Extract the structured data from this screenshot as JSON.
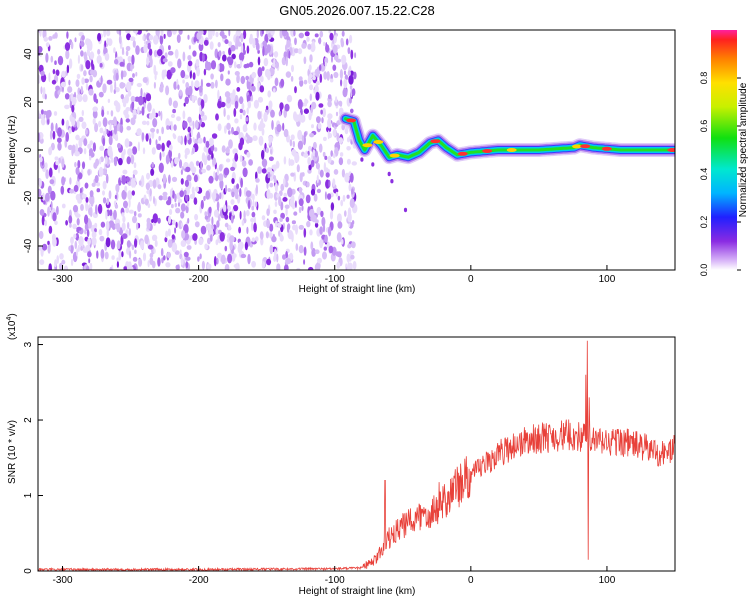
{
  "figure": {
    "title": "GN05.2026.007.15.22.C28"
  },
  "chart_data": [
    {
      "type": "heatmap",
      "xlabel": "Height of straight line (km)",
      "ylabel": "Frequency (Hz)",
      "xlim": [
        -318,
        150
      ],
      "ylim": [
        -50,
        50
      ],
      "xticks": [
        -300,
        -200,
        -100,
        0,
        100
      ],
      "xtick_labels": [
        "-300",
        "-200",
        "-100",
        "0",
        "100"
      ],
      "yticks": [
        -40,
        -20,
        0,
        20,
        40
      ],
      "ytick_labels": [
        "-40",
        "-20",
        "0",
        "20",
        "40"
      ],
      "noise_region_x": [
        -318,
        -85
      ],
      "signal_ridge": [
        {
          "x": -92,
          "y": 13
        },
        {
          "x": -86,
          "y": 12
        },
        {
          "x": -82,
          "y": 4
        },
        {
          "x": -78,
          "y": 0
        },
        {
          "x": -72,
          "y": 6
        },
        {
          "x": -66,
          "y": 2
        },
        {
          "x": -60,
          "y": -3
        },
        {
          "x": -54,
          "y": -2
        },
        {
          "x": -46,
          "y": -3
        },
        {
          "x": -38,
          "y": -1
        },
        {
          "x": -30,
          "y": 3
        },
        {
          "x": -24,
          "y": 4
        },
        {
          "x": -18,
          "y": 1
        },
        {
          "x": -10,
          "y": -2
        },
        {
          "x": 0,
          "y": -1
        },
        {
          "x": 20,
          "y": 0
        },
        {
          "x": 50,
          "y": 0
        },
        {
          "x": 76,
          "y": 1
        },
        {
          "x": 80,
          "y": 2
        },
        {
          "x": 90,
          "y": 1
        },
        {
          "x": 110,
          "y": 0
        },
        {
          "x": 150,
          "y": 0
        }
      ],
      "colorbar": {
        "label": "Normalized spectral amplitude",
        "range": [
          0,
          1
        ],
        "ticks": [
          0.0,
          0.2,
          0.4,
          0.6,
          0.8
        ],
        "tick_labels": [
          "0.0",
          "0.2",
          "0.4",
          "0.6",
          "0.8"
        ]
      }
    },
    {
      "type": "line",
      "xlabel": "Height of straight line (km)",
      "ylabel": "SNR (10 * v/v)",
      "y_multiplier": "(x10",
      "y_multiplier_exp": "4",
      "y_multiplier_close": ")",
      "xlim": [
        -318,
        150
      ],
      "ylim": [
        0,
        3.1
      ],
      "xticks": [
        -300,
        -200,
        -100,
        0,
        100
      ],
      "xtick_labels": [
        "-300",
        "-200",
        "-100",
        "0",
        "100"
      ],
      "yticks": [
        0,
        1,
        2,
        3
      ],
      "ytick_labels": [
        "0",
        "1",
        "2",
        "3"
      ],
      "color": "#e8413a",
      "series": [
        {
          "envelope": [
            {
              "x": -318,
              "y": 0.02
            },
            {
              "x": -200,
              "y": 0.02
            },
            {
              "x": -100,
              "y": 0.03
            },
            {
              "x": -80,
              "y": 0.04
            },
            {
              "x": -70,
              "y": 0.15
            },
            {
              "x": -60,
              "y": 0.45
            },
            {
              "x": -50,
              "y": 0.6
            },
            {
              "x": -40,
              "y": 0.7
            },
            {
              "x": -30,
              "y": 0.8
            },
            {
              "x": -20,
              "y": 0.95
            },
            {
              "x": -10,
              "y": 1.1
            },
            {
              "x": 0,
              "y": 1.25
            },
            {
              "x": 10,
              "y": 1.4
            },
            {
              "x": 20,
              "y": 1.55
            },
            {
              "x": 30,
              "y": 1.65
            },
            {
              "x": 40,
              "y": 1.72
            },
            {
              "x": 50,
              "y": 1.76
            },
            {
              "x": 60,
              "y": 1.78
            },
            {
              "x": 70,
              "y": 1.8
            },
            {
              "x": 80,
              "y": 1.78
            },
            {
              "x": 90,
              "y": 1.72
            },
            {
              "x": 100,
              "y": 1.7
            },
            {
              "x": 110,
              "y": 1.72
            },
            {
              "x": 120,
              "y": 1.68
            },
            {
              "x": 130,
              "y": 1.62
            },
            {
              "x": 140,
              "y": 1.55
            },
            {
              "x": 150,
              "y": 1.62
            }
          ],
          "spikes": [
            {
              "x": -63,
              "y": 1.2
            },
            {
              "x": 84.5,
              "y": 2.6
            },
            {
              "x": 85.5,
              "y": 3.05
            },
            {
              "x": 86.2,
              "y": 0.15
            },
            {
              "x": 87,
              "y": 2.3
            }
          ]
        }
      ]
    }
  ]
}
